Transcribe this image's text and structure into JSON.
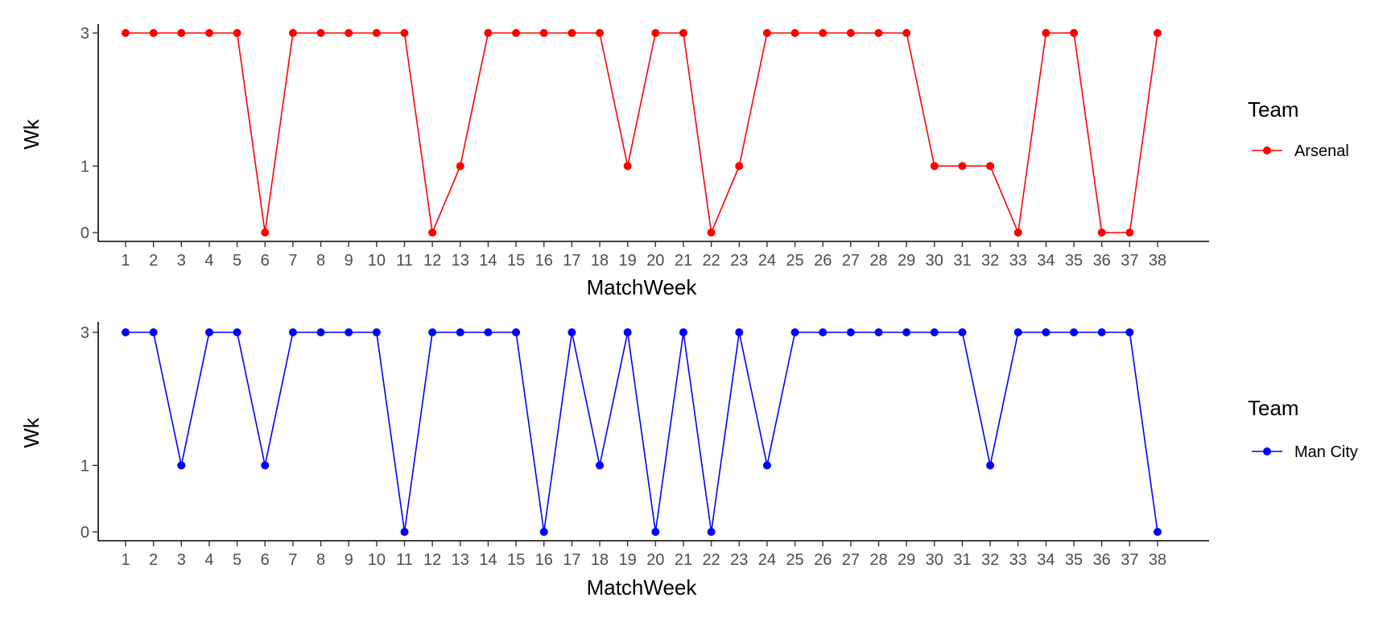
{
  "chart_data": [
    {
      "type": "line",
      "xlabel": "MatchWeek",
      "ylabel": "Wk",
      "x": [
        1,
        2,
        3,
        4,
        5,
        6,
        7,
        8,
        9,
        10,
        11,
        12,
        13,
        14,
        15,
        16,
        17,
        18,
        19,
        20,
        21,
        22,
        23,
        24,
        25,
        26,
        27,
        28,
        29,
        30,
        31,
        32,
        33,
        34,
        35,
        36,
        37,
        38
      ],
      "y_ticks": [
        0,
        1,
        3
      ],
      "ylim": [
        0,
        3
      ],
      "grid": false,
      "legend_title": "Team",
      "legend_position": "right",
      "series": [
        {
          "name": "Arsenal",
          "color": "#ff0000",
          "values": [
            3,
            3,
            3,
            3,
            3,
            0,
            3,
            3,
            3,
            3,
            3,
            0,
            1,
            3,
            3,
            3,
            3,
            3,
            1,
            3,
            3,
            0,
            1,
            3,
            3,
            3,
            3,
            3,
            3,
            1,
            1,
            1,
            0,
            3,
            3,
            0,
            0,
            3
          ]
        }
      ]
    },
    {
      "type": "line",
      "xlabel": "MatchWeek",
      "ylabel": "Wk",
      "x": [
        1,
        2,
        3,
        4,
        5,
        6,
        7,
        8,
        9,
        10,
        11,
        12,
        13,
        14,
        15,
        16,
        17,
        18,
        19,
        20,
        21,
        22,
        23,
        24,
        25,
        26,
        27,
        28,
        29,
        30,
        31,
        32,
        33,
        34,
        35,
        36,
        37,
        38
      ],
      "y_ticks": [
        0,
        1,
        3
      ],
      "ylim": [
        0,
        3
      ],
      "grid": false,
      "legend_title": "Team",
      "legend_position": "right",
      "series": [
        {
          "name": "Man City",
          "color": "#0000ff",
          "values": [
            3,
            3,
            1,
            3,
            3,
            1,
            3,
            3,
            3,
            3,
            0,
            3,
            3,
            3,
            3,
            0,
            3,
            1,
            3,
            0,
            3,
            0,
            3,
            1,
            3,
            3,
            3,
            3,
            3,
            3,
            3,
            1,
            3,
            3,
            3,
            3,
            3,
            0
          ]
        }
      ]
    }
  ]
}
